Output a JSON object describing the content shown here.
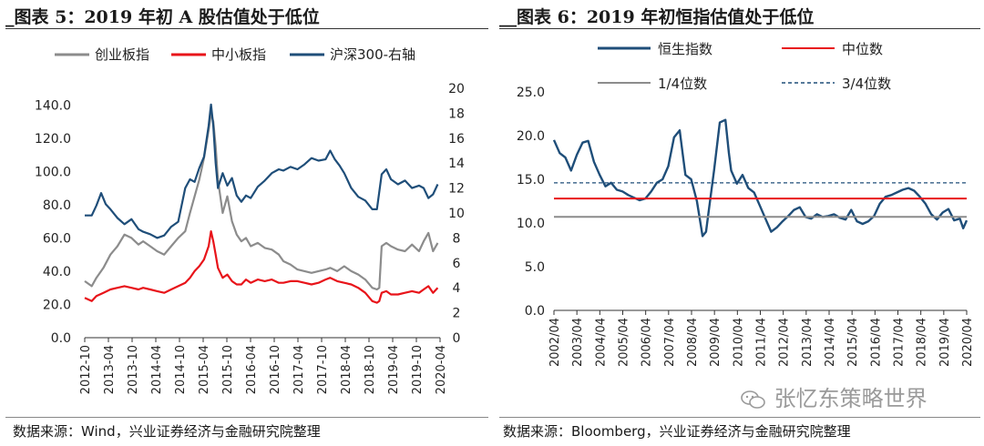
{
  "chart_data": [
    {
      "type": "line",
      "title": "图表 5：2019 年初 A 股估值处于低位",
      "title_prefix": "_",
      "source": "数据来源：Wind，兴业证券经济与金融研究院整理",
      "x_ticks": [
        "2012-10",
        "2013-04",
        "2013-10",
        "2014-04",
        "2014-10",
        "2015-04",
        "2015-10",
        "2016-04",
        "2016-10",
        "2017-04",
        "2017-10",
        "2018-04",
        "2018-10",
        "2019-04",
        "2019-10",
        "2020-04"
      ],
      "x_range": [
        2012.75,
        2020.35
      ],
      "left_axis": {
        "ticks": [
          "0.0",
          "20.0",
          "40.0",
          "60.0",
          "80.0",
          "100.0",
          "120.0",
          "140.0"
        ],
        "range": [
          0,
          150
        ]
      },
      "right_axis": {
        "ticks": [
          "0",
          "2",
          "4",
          "6",
          "8",
          "10",
          "12",
          "14",
          "16",
          "18",
          "20"
        ],
        "range": [
          0,
          20
        ]
      },
      "grid": false,
      "legend_position": "top",
      "series": [
        {
          "name": "创业板指",
          "axis": "left",
          "color": "#8c8c8c",
          "x": [
            2012.75,
            2012.9,
            2013.0,
            2013.15,
            2013.3,
            2013.45,
            2013.6,
            2013.75,
            2013.9,
            2014.0,
            2014.15,
            2014.3,
            2014.45,
            2014.6,
            2014.75,
            2014.9,
            2015.0,
            2015.1,
            2015.2,
            2015.3,
            2015.4,
            2015.45,
            2015.5,
            2015.55,
            2015.6,
            2015.7,
            2015.8,
            2015.9,
            2016.0,
            2016.1,
            2016.2,
            2016.3,
            2016.45,
            2016.6,
            2016.75,
            2016.9,
            2017.0,
            2017.15,
            2017.3,
            2017.45,
            2017.6,
            2017.75,
            2017.9,
            2018.0,
            2018.15,
            2018.3,
            2018.45,
            2018.6,
            2018.75,
            2018.9,
            2019.0,
            2019.05,
            2019.1,
            2019.2,
            2019.3,
            2019.45,
            2019.6,
            2019.75,
            2019.9,
            2020.0,
            2020.1,
            2020.2,
            2020.3
          ],
          "y": [
            34,
            31,
            36,
            42,
            50,
            55,
            62,
            60,
            56,
            58,
            55,
            52,
            50,
            55,
            60,
            64,
            75,
            85,
            95,
            108,
            125,
            135,
            130,
            115,
            95,
            75,
            85,
            70,
            62,
            58,
            60,
            55,
            57,
            54,
            53,
            50,
            46,
            44,
            41,
            40,
            39,
            40,
            41,
            42,
            40,
            43,
            40,
            38,
            35,
            30,
            29,
            30,
            55,
            57,
            55,
            53,
            52,
            56,
            52,
            58,
            63,
            52,
            57
          ]
        },
        {
          "name": "中小板指",
          "axis": "left",
          "color": "#e8141a",
          "x": [
            2012.75,
            2012.9,
            2013.0,
            2013.15,
            2013.3,
            2013.45,
            2013.6,
            2013.75,
            2013.9,
            2014.0,
            2014.15,
            2014.3,
            2014.45,
            2014.6,
            2014.75,
            2014.9,
            2015.0,
            2015.1,
            2015.2,
            2015.3,
            2015.4,
            2015.45,
            2015.5,
            2015.55,
            2015.6,
            2015.7,
            2015.8,
            2015.9,
            2016.0,
            2016.1,
            2016.2,
            2016.3,
            2016.45,
            2016.6,
            2016.75,
            2016.9,
            2017.0,
            2017.15,
            2017.3,
            2017.45,
            2017.6,
            2017.75,
            2017.9,
            2018.0,
            2018.15,
            2018.3,
            2018.45,
            2018.6,
            2018.75,
            2018.9,
            2019.0,
            2019.05,
            2019.1,
            2019.2,
            2019.3,
            2019.45,
            2019.6,
            2019.75,
            2019.9,
            2020.0,
            2020.1,
            2020.2,
            2020.3
          ],
          "y": [
            24,
            22,
            25,
            27,
            29,
            30,
            31,
            30,
            29,
            30,
            29,
            28,
            27,
            29,
            31,
            33,
            36,
            40,
            43,
            47,
            55,
            64,
            58,
            50,
            42,
            36,
            38,
            34,
            32,
            32,
            35,
            33,
            35,
            34,
            35,
            33,
            33,
            34,
            34,
            33,
            32,
            33,
            35,
            36,
            34,
            33,
            32,
            30,
            27,
            22,
            21,
            22,
            27,
            28,
            26,
            26,
            27,
            28,
            27,
            29,
            31,
            27,
            30
          ]
        },
        {
          "name": "沪深300-右轴",
          "axis": "right",
          "color": "#1f4e79",
          "x": [
            2012.75,
            2012.9,
            2013.0,
            2013.1,
            2013.2,
            2013.3,
            2013.45,
            2013.6,
            2013.75,
            2013.9,
            2014.0,
            2014.15,
            2014.3,
            2014.45,
            2014.6,
            2014.75,
            2014.9,
            2015.0,
            2015.1,
            2015.2,
            2015.3,
            2015.4,
            2015.45,
            2015.5,
            2015.55,
            2015.6,
            2015.7,
            2015.8,
            2015.9,
            2016.0,
            2016.1,
            2016.2,
            2016.3,
            2016.45,
            2016.6,
            2016.75,
            2016.9,
            2017.0,
            2017.15,
            2017.3,
            2017.45,
            2017.6,
            2017.75,
            2017.9,
            2018.0,
            2018.1,
            2018.2,
            2018.3,
            2018.45,
            2018.6,
            2018.75,
            2018.9,
            2019.0,
            2019.1,
            2019.2,
            2019.3,
            2019.45,
            2019.6,
            2019.75,
            2019.9,
            2020.0,
            2020.1,
            2020.2,
            2020.3
          ],
          "y": [
            9.8,
            9.8,
            10.6,
            11.6,
            10.7,
            10.3,
            9.6,
            9.1,
            9.5,
            8.7,
            8.5,
            8.3,
            8.0,
            8.2,
            8.9,
            9.3,
            12.0,
            12.7,
            12.5,
            13.6,
            14.5,
            17.0,
            18.7,
            17.0,
            14.0,
            12.0,
            13.2,
            12.2,
            12.8,
            11.4,
            10.9,
            11.4,
            11.2,
            12.1,
            12.6,
            13.2,
            13.5,
            13.4,
            13.7,
            13.5,
            13.9,
            14.4,
            14.2,
            14.3,
            15.0,
            14.3,
            13.8,
            13.2,
            12.0,
            11.3,
            11.0,
            10.3,
            10.3,
            13.1,
            13.5,
            12.7,
            12.3,
            12.6,
            12.0,
            12.2,
            12.0,
            11.2,
            11.5,
            12.3
          ]
        }
      ]
    },
    {
      "type": "line",
      "title": "图表 6：2019 年初恒指估值处于低位",
      "title_prefix": "__",
      "source": "数据来源：Bloomberg，兴业证券经济与金融研究院整理",
      "x_ticks": [
        "2002/04",
        "2003/04",
        "2004/04",
        "2005/04",
        "2006/04",
        "2007/04",
        "2008/04",
        "2009/04",
        "2010/04",
        "2011/04",
        "2012/04",
        "2013/04",
        "2014/04",
        "2015/04",
        "2016/04",
        "2017/04",
        "2018/04",
        "2019/04",
        "2020/04"
      ],
      "x_range": [
        2002.25,
        2020.3
      ],
      "y_axis": {
        "ticks": [
          "0.0",
          "5.0",
          "10.0",
          "15.0",
          "20.0",
          "25.0"
        ],
        "range": [
          0,
          25
        ]
      },
      "grid": false,
      "legend_position": "top",
      "reference_lines": [
        {
          "name": "中位数",
          "value": 12.8,
          "color": "#e8141a",
          "style": "solid"
        },
        {
          "name": "1/4位数",
          "value": 10.7,
          "color": "#8c8c8c",
          "style": "solid"
        },
        {
          "name": "3/4位数",
          "value": 14.6,
          "color": "#1f4e79",
          "style": "dashed"
        }
      ],
      "series": [
        {
          "name": "恒生指数",
          "color": "#1f4e79",
          "x": [
            2002.25,
            2002.5,
            2002.75,
            2003.0,
            2003.25,
            2003.5,
            2003.75,
            2004.0,
            2004.25,
            2004.5,
            2004.75,
            2005.0,
            2005.25,
            2005.5,
            2005.75,
            2006.0,
            2006.25,
            2006.5,
            2006.75,
            2007.0,
            2007.25,
            2007.5,
            2007.75,
            2007.9,
            2008.0,
            2008.25,
            2008.5,
            2008.75,
            2008.9,
            2009.0,
            2009.25,
            2009.5,
            2009.75,
            2009.9,
            2010.0,
            2010.25,
            2010.5,
            2010.75,
            2011.0,
            2011.25,
            2011.5,
            2011.75,
            2012.0,
            2012.25,
            2012.5,
            2012.75,
            2013.0,
            2013.25,
            2013.5,
            2013.75,
            2014.0,
            2014.25,
            2014.5,
            2014.75,
            2015.0,
            2015.25,
            2015.5,
            2015.75,
            2016.0,
            2016.25,
            2016.5,
            2016.75,
            2017.0,
            2017.25,
            2017.5,
            2017.75,
            2018.0,
            2018.25,
            2018.5,
            2018.75,
            2019.0,
            2019.25,
            2019.5,
            2019.75,
            2020.0,
            2020.15,
            2020.3
          ],
          "y": [
            19.5,
            18.0,
            17.5,
            16.0,
            17.8,
            19.2,
            19.4,
            17.0,
            15.5,
            14.2,
            14.6,
            13.8,
            13.6,
            13.2,
            12.9,
            12.6,
            12.8,
            13.6,
            14.6,
            15.0,
            16.5,
            19.8,
            20.6,
            17.5,
            15.5,
            15.0,
            12.5,
            8.5,
            9.0,
            11.0,
            16.0,
            21.5,
            21.8,
            18.0,
            16.0,
            14.5,
            15.5,
            14.0,
            13.5,
            12.0,
            10.5,
            9.0,
            9.5,
            10.2,
            10.8,
            11.5,
            11.8,
            10.7,
            10.5,
            11.0,
            10.7,
            10.8,
            11.0,
            10.6,
            10.4,
            11.5,
            10.2,
            9.9,
            10.2,
            10.8,
            12.2,
            13.0,
            13.2,
            13.5,
            13.8,
            14.0,
            13.7,
            13.0,
            12.2,
            11.0,
            10.4,
            11.2,
            11.6,
            10.3,
            10.5,
            9.4,
            10.3
          ]
        }
      ]
    }
  ],
  "watermark": "张忆东策略世界"
}
